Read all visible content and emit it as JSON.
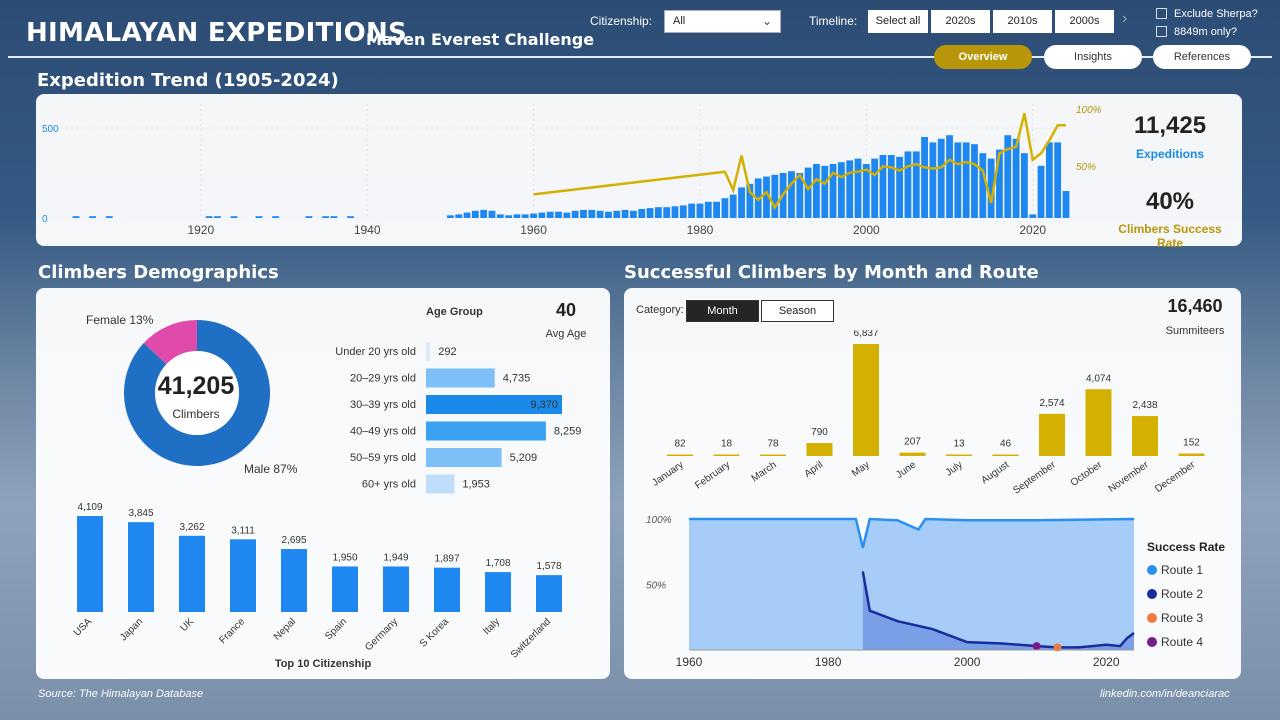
{
  "header": {
    "title": "HIMALAYAN EXPEDITIONS",
    "subtitle": "Maven Everest Challenge",
    "citizenship_label": "Citizenship:",
    "citizenship_value": "All",
    "timeline_label": "Timeline:",
    "timeline_buttons": [
      "Select all",
      "2020s",
      "2010s",
      "2000s"
    ],
    "checkboxes": [
      "Exclude Sherpa?",
      "8849m only?"
    ],
    "nav": [
      "Overview",
      "Insights",
      "References"
    ]
  },
  "trend": {
    "title": "Expedition Trend (1905-2024)",
    "kpi_expeditions": "11,425",
    "kpi_expeditions_label": "Expeditions",
    "kpi_success": "40%",
    "kpi_success_label": "Climbers Success Rate",
    "colors": {
      "bars": "#1e88f0",
      "line": "#d4b000"
    }
  },
  "demographics": {
    "title": "Climbers Demographics",
    "total": "41,205",
    "total_label": "Climbers",
    "female_label": "Female 13%",
    "male_label": "Male 87%",
    "age_title": "Age Group",
    "avg_age": "40",
    "avg_age_label": "Avg Age",
    "citizenship_title": "Top 10 Citizenship"
  },
  "successful": {
    "title": "Successful Climbers by Month and Route",
    "category_label": "Category:",
    "category_buttons": [
      "Month",
      "Season"
    ],
    "summiteers": "16,460",
    "summiteers_label": "Summiteers",
    "legend_title": "Success Rate",
    "routes": [
      {
        "name": "Route 1",
        "color": "#2b8ff2"
      },
      {
        "name": "Route 2",
        "color": "#1a2c9c"
      },
      {
        "name": "Route 3",
        "color": "#f07a3a"
      },
      {
        "name": "Route 4",
        "color": "#7a1a8c"
      }
    ]
  },
  "footer": {
    "source": "Source: The Himalayan Database",
    "credit": "linkedin.com/in/deanciarac"
  },
  "chart_data": [
    {
      "type": "bar",
      "id": "expedition-trend",
      "x_ticks": [
        1920,
        1940,
        1960,
        1980,
        2000,
        2020
      ],
      "xlim": [
        1905,
        2024
      ],
      "y_ticks": [
        0,
        500
      ],
      "y2_ticks": [
        "50%",
        "100%"
      ],
      "years": [
        1905,
        1907,
        1909,
        1921,
        1922,
        1924,
        1927,
        1929,
        1933,
        1935,
        1936,
        1938,
        1950,
        1951,
        1952,
        1953,
        1954,
        1955,
        1956,
        1957,
        1958,
        1959,
        1960,
        1961,
        1962,
        1963,
        1964,
        1965,
        1966,
        1967,
        1968,
        1969,
        1970,
        1971,
        1972,
        1973,
        1974,
        1975,
        1976,
        1977,
        1978,
        1979,
        1980,
        1981,
        1982,
        1983,
        1984,
        1985,
        1986,
        1987,
        1988,
        1989,
        1990,
        1991,
        1992,
        1993,
        1994,
        1995,
        1996,
        1997,
        1998,
        1999,
        2000,
        2001,
        2002,
        2003,
        2004,
        2005,
        2006,
        2007,
        2008,
        2009,
        2010,
        2011,
        2012,
        2013,
        2014,
        2015,
        2016,
        2017,
        2018,
        2019,
        2020,
        2021,
        2022,
        2023,
        2024
      ],
      "values": [
        10,
        10,
        10,
        10,
        10,
        10,
        10,
        10,
        10,
        10,
        10,
        10,
        15,
        20,
        30,
        40,
        45,
        40,
        20,
        15,
        20,
        20,
        25,
        30,
        35,
        35,
        30,
        40,
        45,
        45,
        40,
        35,
        40,
        45,
        40,
        50,
        55,
        60,
        60,
        65,
        70,
        80,
        80,
        90,
        90,
        110,
        130,
        170,
        190,
        220,
        230,
        240,
        250,
        260,
        250,
        280,
        300,
        290,
        300,
        310,
        320,
        330,
        300,
        330,
        350,
        350,
        340,
        370,
        370,
        450,
        420,
        440,
        460,
        420,
        420,
        410,
        360,
        330,
        380,
        460,
        440,
        360,
        20,
        290,
        420,
        420,
        150
      ],
      "success_years": [
        1960,
        1983,
        1984,
        1985,
        1986,
        1987,
        1988,
        1989,
        1990,
        1991,
        1992,
        1993,
        1994,
        1995,
        1996,
        1997,
        1998,
        1999,
        2000,
        2001,
        2002,
        2003,
        2004,
        2005,
        2006,
        2007,
        2008,
        2009,
        2010,
        2011,
        2012,
        2013,
        2014,
        2015,
        2016,
        2017,
        2018,
        2019,
        2020,
        2021,
        2022,
        2023,
        2024
      ],
      "success_rate": [
        20,
        41,
        24,
        56,
        22,
        15,
        22,
        8,
        20,
        30,
        38,
        25,
        34,
        30,
        40,
        36,
        40,
        41,
        43,
        38,
        46,
        45,
        42,
        46,
        48,
        45,
        44,
        45,
        52,
        48,
        50,
        48,
        42,
        12,
        58,
        62,
        64,
        95,
        52,
        58,
        70,
        84,
        84
      ],
      "kpi": "11,425 Expeditions"
    },
    {
      "type": "pie",
      "id": "gender",
      "labels": [
        "Male",
        "Female"
      ],
      "values": [
        87,
        13
      ],
      "colors": [
        "#1f6fc5",
        "#e04aaa"
      ]
    },
    {
      "type": "bar",
      "id": "age-group",
      "orientation": "horizontal",
      "categories": [
        "Under 20 yrs old",
        "20–29 yrs old",
        "30–39 yrs old",
        "40–49 yrs old",
        "50–59 yrs old",
        "60+ yrs old"
      ],
      "values": [
        292,
        4735,
        9370,
        8259,
        5209,
        1953
      ],
      "labels": [
        "292",
        "4,735",
        "9,370",
        "8,259",
        "5,209",
        "1,953"
      ],
      "colors": [
        "#d9ecfd",
        "#7dc0f8",
        "#1a8aea",
        "#3aa0f2",
        "#7dc0f8",
        "#bedefb"
      ]
    },
    {
      "type": "bar",
      "id": "top-citizenship",
      "categories": [
        "USA",
        "Japan",
        "UK",
        "France",
        "Nepal",
        "Spain",
        "Germany",
        "S Korea",
        "Italy",
        "Switzerland"
      ],
      "values": [
        4109,
        3845,
        3262,
        3111,
        2695,
        1950,
        1949,
        1897,
        1708,
        1578
      ],
      "labels": [
        "4,109",
        "3,845",
        "3,262",
        "3,111",
        "2,695",
        "1,950",
        "1,949",
        "1,897",
        "1,708",
        "1,578"
      ],
      "color": "#1e88f0"
    },
    {
      "type": "bar",
      "id": "summiteers-by-month",
      "categories": [
        "January",
        "February",
        "March",
        "April",
        "May",
        "June",
        "July",
        "August",
        "September",
        "October",
        "November",
        "December"
      ],
      "values": [
        82,
        18,
        78,
        790,
        6837,
        207,
        13,
        46,
        2574,
        4074,
        2438,
        152
      ],
      "labels": [
        "82",
        "18",
        "78",
        "790",
        "6,837",
        "207",
        "13",
        "46",
        "2,574",
        "4,074",
        "2,438",
        "152"
      ],
      "color": "#d4b000"
    },
    {
      "type": "area",
      "id": "success-rate-by-route",
      "x_ticks": [
        1960,
        1980,
        2000,
        2020
      ],
      "xlim": [
        1960,
        2024
      ],
      "y_ticks": [
        "50%",
        "100%"
      ],
      "route1": {
        "x": [
          1960,
          1984,
          1985,
          1986,
          1990,
          1993,
          1994,
          2000,
          2010,
          2024
        ],
        "y": [
          100,
          100,
          78,
          100,
          99,
          92,
          100,
          99,
          99,
          100
        ]
      },
      "route2": {
        "x": [
          1985,
          1986,
          1990,
          1995,
          2000,
          2005,
          2010,
          2013,
          2016,
          2018,
          2020,
          2022,
          2023,
          2024
        ],
        "y": [
          60,
          30,
          22,
          16,
          6,
          5,
          3,
          2,
          2,
          3,
          4,
          3,
          9,
          13
        ]
      },
      "route3": {
        "x": [
          2013
        ],
        "y": [
          2
        ]
      },
      "route4": {
        "x": [
          2010
        ],
        "y": [
          3
        ]
      }
    }
  ]
}
